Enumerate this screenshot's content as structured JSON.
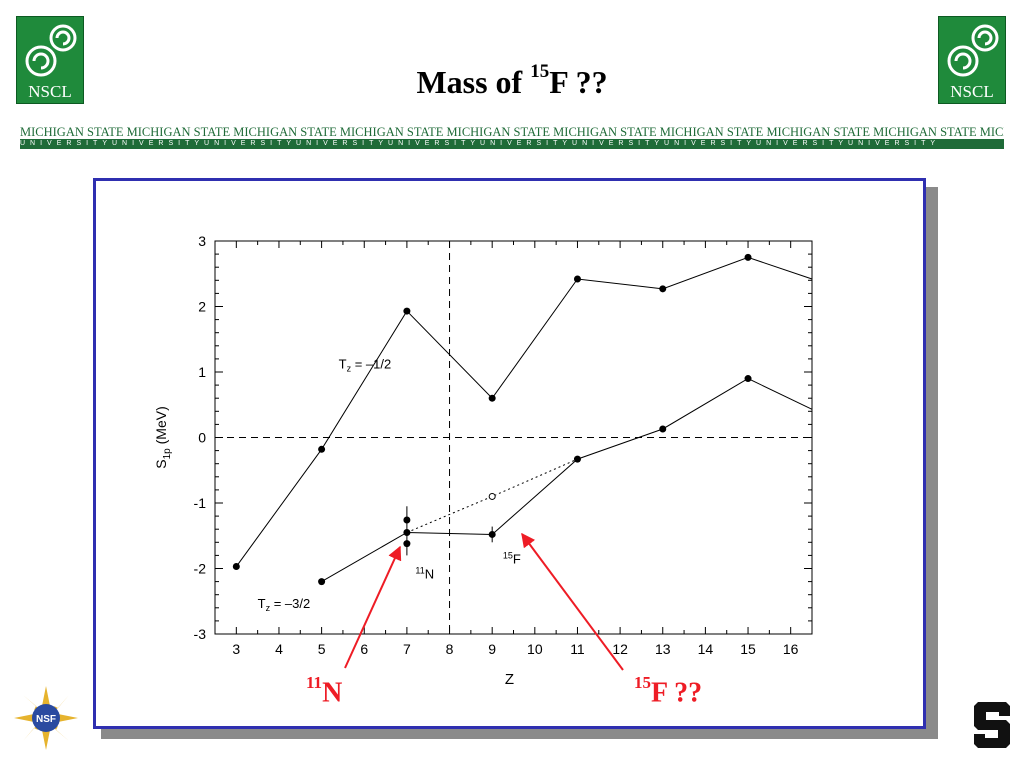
{
  "logos": {
    "left_text": "NSCL",
    "right_text": "NSCL",
    "icon": "nscl-spiral-icon"
  },
  "title": {
    "prefix": "Mass of ",
    "mass_number": "15",
    "suffix": "F ??"
  },
  "band": {
    "top_text": "MICHIGAN STATE MICHIGAN STATE MICHIGAN STATE MICHIGAN STATE MICHIGAN STATE MICHIGAN STATE MICHIGAN STATE MICHIGAN STATE MICHIGAN STATE MICHIGAN STATE",
    "bottom_text": "UNIVERSITYUNIVERSITYUNIVERSITYUNIVERSITYUNIVERSITYUNIVERSITYUNIVERSITYUNIVERSITYUNIVERSITYUNIVERSITY",
    "color": "#1f6b38"
  },
  "colors": {
    "frame": "#2f2fb0",
    "annotation": "#ee1c25",
    "logo_green": "#1f8a3b"
  },
  "annotations": [
    {
      "mass_number": "11",
      "symbol": "N"
    },
    {
      "mass_number": "15",
      "symbol": "F ??"
    }
  ],
  "chart_data": {
    "type": "line",
    "xlabel": "Z",
    "ylabel_main": "S",
    "ylabel_sub": "1p",
    "ylabel_unit": " (MeV)",
    "xlim": [
      2.5,
      16.5
    ],
    "ylim": [
      -3,
      3
    ],
    "xticks": [
      3,
      4,
      5,
      6,
      7,
      8,
      9,
      10,
      11,
      12,
      13,
      14,
      15,
      16
    ],
    "yticks": [
      -3,
      -2,
      -1,
      0,
      1,
      2,
      3
    ],
    "grid": false,
    "reference_lines": {
      "horizontal_dashed_y": 0,
      "vertical_dashed_x": 8
    },
    "series": [
      {
        "label_main": "T",
        "label_sub": "z",
        "label_rest": " = –1/2",
        "x": [
          3,
          5,
          7,
          9,
          11,
          13,
          15,
          16.5
        ],
        "y": [
          -1.97,
          -0.18,
          1.93,
          0.6,
          2.42,
          2.27,
          2.75,
          2.42
        ],
        "markers": [
          3,
          5,
          7,
          9,
          11,
          13,
          15
        ]
      },
      {
        "label_main": "T",
        "label_sub": "z",
        "label_rest": " = –3/2",
        "x": [
          5,
          7,
          9,
          11,
          13,
          15,
          16.5
        ],
        "y": [
          -2.2,
          -1.45,
          -1.48,
          -0.33,
          0.13,
          0.9,
          0.43
        ],
        "markers": [
          5,
          7,
          9,
          11,
          13,
          15
        ]
      }
    ],
    "extra_points": [
      {
        "x": 7,
        "y": -1.26
      },
      {
        "x": 7,
        "y": -1.62
      }
    ],
    "error_bars": [
      {
        "x": 7,
        "y_low": -1.8,
        "y_high": -1.05
      },
      {
        "x": 9,
        "y_low": -1.6,
        "y_high": -1.36
      }
    ],
    "dotted_line": {
      "x": [
        7,
        9,
        11
      ],
      "y": [
        -1.45,
        -0.9,
        -0.33
      ]
    },
    "open_point": {
      "x": 9,
      "y": -0.9
    },
    "point_labels": [
      {
        "mass_number": "11",
        "symbol": "N",
        "x": 7.2,
        "y": -2.15
      },
      {
        "mass_number": "15",
        "symbol": "F",
        "x": 9.25,
        "y": -1.92
      }
    ]
  }
}
